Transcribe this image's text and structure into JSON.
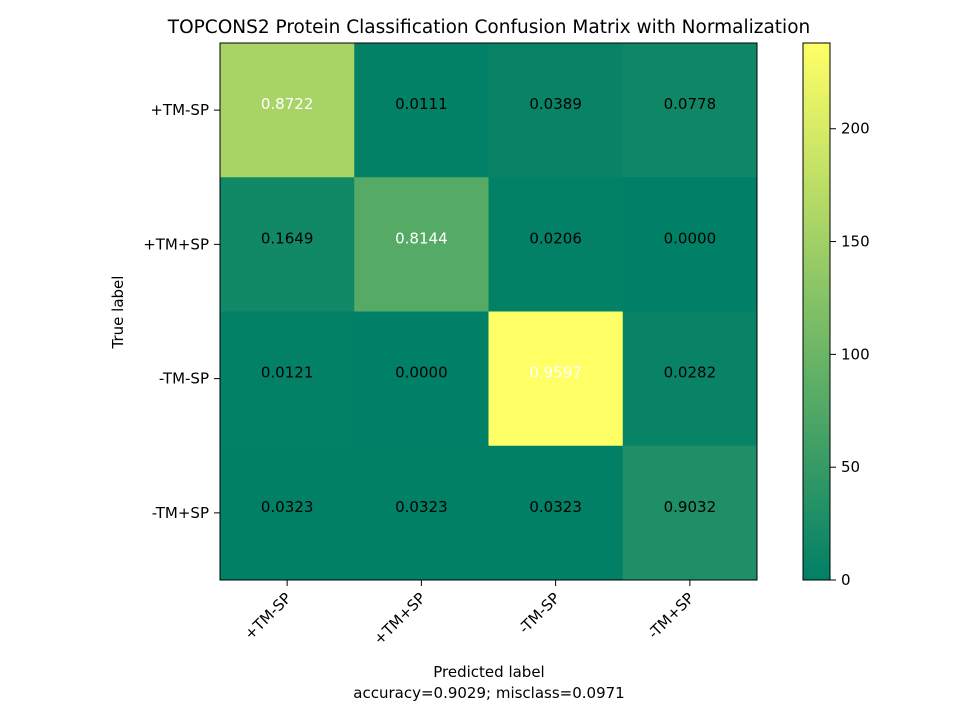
{
  "chart_data": {
    "type": "heatmap",
    "title": "TOPCONS2 Protein Classification Confusion Matrix with Normalization",
    "xlabel": "Predicted label",
    "xlabel_sub": "accuracy=0.9029; misclass=0.0971",
    "ylabel": "True label",
    "x_categories": [
      "+TM-SP",
      "+TM+SP",
      "-TM-SP",
      "-TM+SP"
    ],
    "y_categories": [
      "+TM-SP",
      "+TM+SP",
      "-TM-SP",
      "-TM+SP"
    ],
    "cell_labels": [
      [
        "0.8722",
        "0.0111",
        "0.0389",
        "0.0778"
      ],
      [
        "0.1649",
        "0.8144",
        "0.0206",
        "0.0000"
      ],
      [
        "0.0121",
        "0.0000",
        "0.9597",
        "0.0282"
      ],
      [
        "0.0323",
        "0.0323",
        "0.0323",
        "0.9032"
      ]
    ],
    "counts": [
      [
        157,
        2,
        7,
        14
      ],
      [
        16,
        79,
        2,
        0
      ],
      [
        3,
        0,
        238,
        7
      ],
      [
        1,
        1,
        1,
        28
      ]
    ],
    "colorbar": {
      "min": 0,
      "max": 238,
      "ticks": [
        0,
        50,
        100,
        150,
        200
      ]
    },
    "colormap": "summer"
  }
}
